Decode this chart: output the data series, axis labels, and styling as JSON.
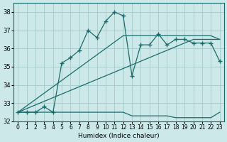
{
  "xlabel": "Humidex (Indice chaleur)",
  "ylabel": "",
  "bg_color": "#cce8e8",
  "grid_color": "#aacfcf",
  "line_color": "#1a6b6b",
  "x_values": [
    0,
    1,
    2,
    3,
    4,
    5,
    6,
    7,
    8,
    9,
    10,
    11,
    12,
    13,
    14,
    15,
    16,
    17,
    18,
    19,
    20,
    21,
    22,
    23
  ],
  "humidex_line": [
    32.5,
    32.5,
    32.5,
    32.8,
    32.5,
    35.2,
    35.5,
    35.9,
    37.0,
    36.6,
    37.5,
    38.0,
    37.8,
    34.5,
    36.2,
    36.2,
    36.8,
    36.2,
    36.5,
    36.5,
    36.3,
    36.3,
    36.3,
    35.3
  ],
  "bottom_line": [
    32.5,
    32.5,
    32.5,
    32.5,
    32.5,
    32.5,
    32.5,
    32.5,
    32.5,
    32.5,
    32.5,
    32.5,
    32.5,
    32.3,
    32.3,
    32.3,
    32.3,
    32.3,
    32.2,
    32.2,
    32.2,
    32.2,
    32.2,
    32.5
  ],
  "trend1": [
    32.5,
    32.7,
    32.9,
    33.1,
    33.3,
    33.5,
    33.7,
    33.9,
    34.1,
    34.3,
    34.5,
    34.7,
    34.9,
    35.1,
    35.3,
    35.5,
    35.7,
    35.9,
    36.1,
    36.3,
    36.5,
    36.5,
    36.5,
    36.5
  ],
  "trend2": [
    32.5,
    32.85,
    33.2,
    33.55,
    33.9,
    34.25,
    34.6,
    34.95,
    35.3,
    35.65,
    36.0,
    36.35,
    36.7,
    36.7,
    36.7,
    36.7,
    36.7,
    36.7,
    36.7,
    36.7,
    36.7,
    36.7,
    36.7,
    36.5
  ],
  "ylim": [
    32.0,
    38.5
  ],
  "yticks": [
    32,
    33,
    34,
    35,
    36,
    37,
    38
  ],
  "xlim": [
    -0.5,
    23.5
  ]
}
